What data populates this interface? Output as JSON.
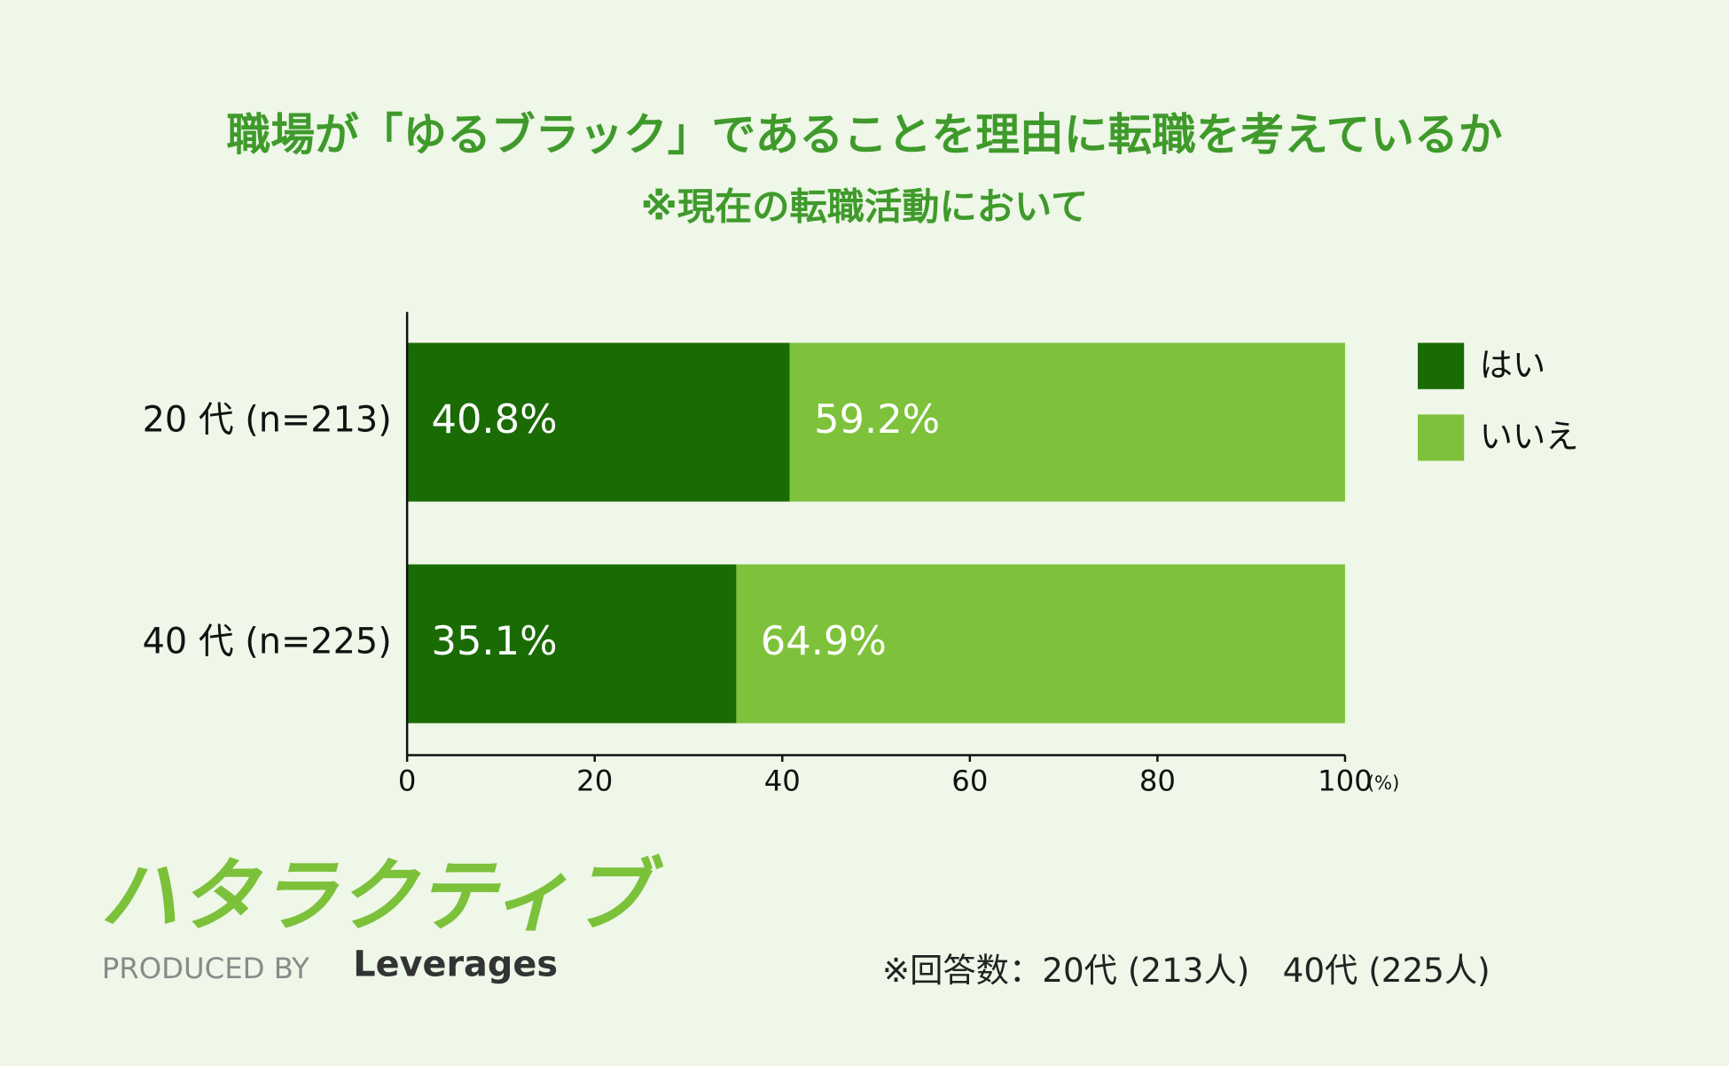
{
  "chart_data": {
    "type": "stacked_barh",
    "title": "職場が「ゆるブラック」であることを理由に転職を考えているか",
    "subtitle": "※現在の転職活動において",
    "categories": [
      "20 代 (n=213)",
      "40 代 (n=225)"
    ],
    "series": [
      {
        "name": "はい",
        "color": "#1a6b04",
        "values": [
          40.8,
          35.1
        ],
        "value_labels": [
          "40.8%",
          "35.1%"
        ]
      },
      {
        "name": "いいえ",
        "color": "#7dc23a",
        "values": [
          59.2,
          64.9
        ],
        "value_labels": [
          "59.2%",
          "64.9%"
        ]
      }
    ],
    "xlim": [
      0,
      100
    ],
    "xticks": [
      0,
      20,
      40,
      60,
      80,
      100
    ],
    "xlabel": "(%)",
    "legend": "right",
    "footnote": "※回答数：20代 (213人)　40代 (225人)"
  },
  "logo": {
    "name": "ハタラクティブ",
    "produced_by": "PRODUCED BY",
    "company": "Leverages"
  }
}
